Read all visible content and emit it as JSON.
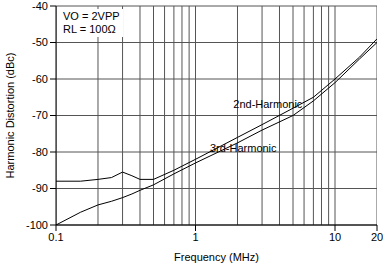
{
  "chart_data": {
    "type": "line",
    "xlabel": "Frequency (MHz)",
    "ylabel": "Harmonic Distortion (dBc)",
    "log": "x",
    "grid": true,
    "xlim": [
      0.1,
      20
    ],
    "xticks": [
      0.1,
      1,
      10,
      20
    ],
    "ylim": [
      -100,
      -40
    ],
    "yticks": [
      -100,
      -90,
      -80,
      -70,
      -60,
      -50,
      -40
    ],
    "x": [
      0.1,
      0.15,
      0.2,
      0.25,
      0.3,
      0.35,
      0.4,
      0.5,
      0.7,
      1,
      2,
      3,
      5,
      7,
      10,
      15,
      20
    ],
    "series": [
      {
        "name": "2nd-Harmonic",
        "color": "#000000",
        "values": [
          -88,
          -88,
          -87.5,
          -87,
          -85.5,
          -86.5,
          -87.5,
          -87.5,
          -85,
          -82,
          -76,
          -72.5,
          -68,
          -65,
          -60,
          -54,
          -49
        ]
      },
      {
        "name": "3rd-Harmonic",
        "color": "#000000",
        "values": [
          -100,
          -96.5,
          -94.5,
          -93.5,
          -92.5,
          -91.5,
          -90.5,
          -89,
          -86,
          -83,
          -77.5,
          -74,
          -70,
          -66,
          -61,
          -54.5,
          -50
        ]
      }
    ],
    "annotations": [
      {
        "text": "2nd-Harmonic",
        "x": 3.3,
        "y": -67
      },
      {
        "text": "3rd-Harmonic",
        "x": 2.2,
        "y": -79
      },
      {
        "text": "VO = 2VPP"
      },
      {
        "text": "RL = 100Ω"
      }
    ]
  }
}
